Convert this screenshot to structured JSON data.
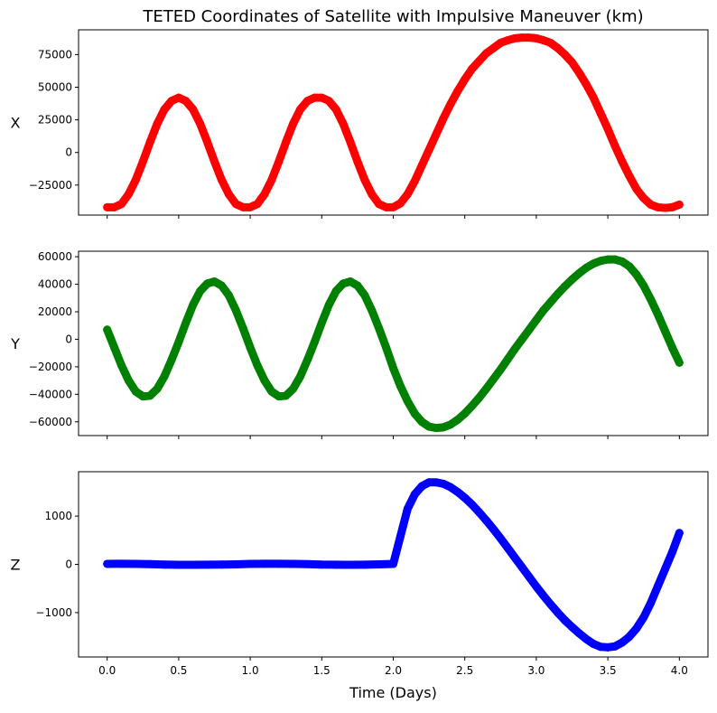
{
  "chart_data": {
    "type": "line",
    "title": "TETED Coordinates of Satellite with Impulsive Maneuver (km)",
    "xlabel": "Time (Days)",
    "xlim": [
      -0.2,
      4.2
    ],
    "xticks": [
      0.0,
      0.5,
      1.0,
      1.5,
      2.0,
      2.5,
      3.0,
      3.5,
      4.0
    ],
    "xtick_labels": [
      "0.0",
      "0.5",
      "1.0",
      "1.5",
      "2.0",
      "2.5",
      "3.0",
      "3.5",
      "4.0"
    ],
    "grid": false,
    "subplots": [
      {
        "ylabel": "X",
        "color": "#ff0000",
        "ylim": [
          -48000,
          94000
        ],
        "yticks": [
          -25000,
          0,
          25000,
          50000,
          75000
        ],
        "ytick_labels": [
          "−25000",
          "0",
          "25000",
          "50000",
          "75000"
        ],
        "x": [
          0.0,
          0.05,
          0.1,
          0.15,
          0.2,
          0.25,
          0.3,
          0.35,
          0.4,
          0.45,
          0.5,
          0.55,
          0.6,
          0.65,
          0.7,
          0.75,
          0.8,
          0.85,
          0.9,
          0.95,
          1.0,
          1.05,
          1.1,
          1.15,
          1.2,
          1.25,
          1.3,
          1.35,
          1.4,
          1.45,
          1.5,
          1.55,
          1.6,
          1.65,
          1.7,
          1.75,
          1.8,
          1.85,
          1.9,
          1.95,
          2.0,
          2.05,
          2.1,
          2.15,
          2.2,
          2.25,
          2.3,
          2.35,
          2.4,
          2.45,
          2.5,
          2.55,
          2.6,
          2.65,
          2.7,
          2.75,
          2.8,
          2.85,
          2.9,
          2.95,
          3.0,
          3.05,
          3.1,
          3.15,
          3.2,
          3.25,
          3.3,
          3.35,
          3.4,
          3.45,
          3.5,
          3.55,
          3.6,
          3.65,
          3.7,
          3.75,
          3.8,
          3.85,
          3.9,
          3.95,
          4.0
        ],
        "y": [
          -42000,
          -42000,
          -39500,
          -32000,
          -21000,
          -7000,
          8000,
          22000,
          33000,
          39500,
          42000,
          39500,
          33000,
          22000,
          8000,
          -7000,
          -21000,
          -32000,
          -39500,
          -42000,
          -42000,
          -39500,
          -32000,
          -21000,
          -7000,
          8000,
          22000,
          33000,
          39500,
          42000,
          42000,
          39500,
          33000,
          22000,
          8000,
          -7000,
          -21000,
          -32000,
          -39500,
          -42000,
          -42000,
          -39000,
          -32000,
          -22000,
          -10000,
          2000,
          14000,
          26000,
          37000,
          47000,
          56000,
          64000,
          70000,
          76000,
          80000,
          84000,
          86000,
          87500,
          88000,
          88000,
          87500,
          86000,
          84000,
          80000,
          75000,
          69000,
          61000,
          52000,
          42000,
          30000,
          18000,
          5000,
          -7000,
          -18000,
          -28000,
          -35000,
          -40000,
          -42000,
          -42500,
          -42000,
          -40000
        ]
      },
      {
        "ylabel": "Y",
        "color": "#008000",
        "ylim": [
          -70000,
          64000
        ],
        "yticks": [
          -60000,
          -40000,
          -20000,
          0,
          20000,
          40000,
          60000
        ],
        "ytick_labels": [
          "−60000",
          "−40000",
          "−20000",
          "0",
          "20000",
          "40000",
          "60000"
        ],
        "x": [
          0.0,
          0.05,
          0.1,
          0.15,
          0.2,
          0.25,
          0.3,
          0.35,
          0.4,
          0.45,
          0.5,
          0.55,
          0.6,
          0.65,
          0.7,
          0.75,
          0.8,
          0.85,
          0.9,
          0.95,
          1.0,
          1.05,
          1.1,
          1.15,
          1.2,
          1.25,
          1.3,
          1.35,
          1.4,
          1.45,
          1.5,
          1.55,
          1.6,
          1.65,
          1.7,
          1.75,
          1.8,
          1.85,
          1.9,
          1.95,
          2.0,
          2.05,
          2.1,
          2.15,
          2.2,
          2.25,
          2.3,
          2.35,
          2.4,
          2.45,
          2.5,
          2.55,
          2.6,
          2.65,
          2.7,
          2.75,
          2.8,
          2.85,
          2.9,
          2.95,
          3.0,
          3.05,
          3.1,
          3.15,
          3.2,
          3.25,
          3.3,
          3.35,
          3.4,
          3.45,
          3.5,
          3.55,
          3.6,
          3.65,
          3.7,
          3.75,
          3.8,
          3.85,
          3.9,
          3.95,
          4.0
        ],
        "y": [
          7000,
          -6000,
          -19000,
          -30000,
          -38000,
          -41500,
          -41000,
          -36000,
          -27000,
          -15000,
          -2000,
          12000,
          25000,
          35000,
          40500,
          42000,
          39000,
          32000,
          21000,
          8000,
          -6000,
          -19000,
          -30000,
          -38000,
          -41500,
          -41000,
          -36000,
          -27000,
          -15000,
          -2000,
          12000,
          25000,
          35000,
          40500,
          42000,
          39000,
          32000,
          21000,
          8000,
          -6000,
          -21000,
          -34000,
          -45000,
          -54000,
          -60000,
          -63500,
          -64500,
          -64000,
          -62000,
          -58500,
          -54000,
          -48500,
          -42500,
          -36000,
          -29000,
          -22000,
          -14500,
          -7000,
          0,
          7000,
          14000,
          21000,
          27000,
          33000,
          38500,
          43500,
          48000,
          52000,
          55000,
          57000,
          58000,
          58000,
          56500,
          53000,
          47000,
          39000,
          29000,
          18000,
          6000,
          -6000,
          -17000
        ]
      },
      {
        "ylabel": "Z",
        "color": "#0000ff",
        "ylim": [
          -1920,
          1920
        ],
        "yticks": [
          -1000,
          0,
          1000
        ],
        "ytick_labels": [
          "−1000",
          "0",
          "1000"
        ],
        "x": [
          0.0,
          0.1,
          0.2,
          0.3,
          0.4,
          0.5,
          0.6,
          0.7,
          0.8,
          0.9,
          1.0,
          1.1,
          1.2,
          1.3,
          1.4,
          1.5,
          1.6,
          1.7,
          1.8,
          1.9,
          2.0,
          2.05,
          2.1,
          2.15,
          2.2,
          2.25,
          2.3,
          2.35,
          2.4,
          2.45,
          2.5,
          2.55,
          2.6,
          2.65,
          2.7,
          2.75,
          2.8,
          2.85,
          2.9,
          2.95,
          3.0,
          3.05,
          3.1,
          3.15,
          3.2,
          3.25,
          3.3,
          3.35,
          3.4,
          3.45,
          3.5,
          3.55,
          3.6,
          3.65,
          3.7,
          3.75,
          3.8,
          3.85,
          3.9,
          3.95,
          4.0
        ],
        "y": [
          10,
          12,
          10,
          5,
          -5,
          -10,
          -10,
          -8,
          -5,
          0,
          10,
          12,
          12,
          10,
          5,
          -5,
          -8,
          -10,
          -8,
          0,
          10,
          580,
          1150,
          1450,
          1620,
          1700,
          1700,
          1670,
          1600,
          1500,
          1380,
          1240,
          1080,
          910,
          730,
          540,
          340,
          140,
          -60,
          -260,
          -460,
          -650,
          -830,
          -1000,
          -1160,
          -1300,
          -1430,
          -1550,
          -1650,
          -1710,
          -1720,
          -1700,
          -1620,
          -1500,
          -1330,
          -1100,
          -800,
          -450,
          -100,
          250,
          650
        ]
      }
    ]
  }
}
